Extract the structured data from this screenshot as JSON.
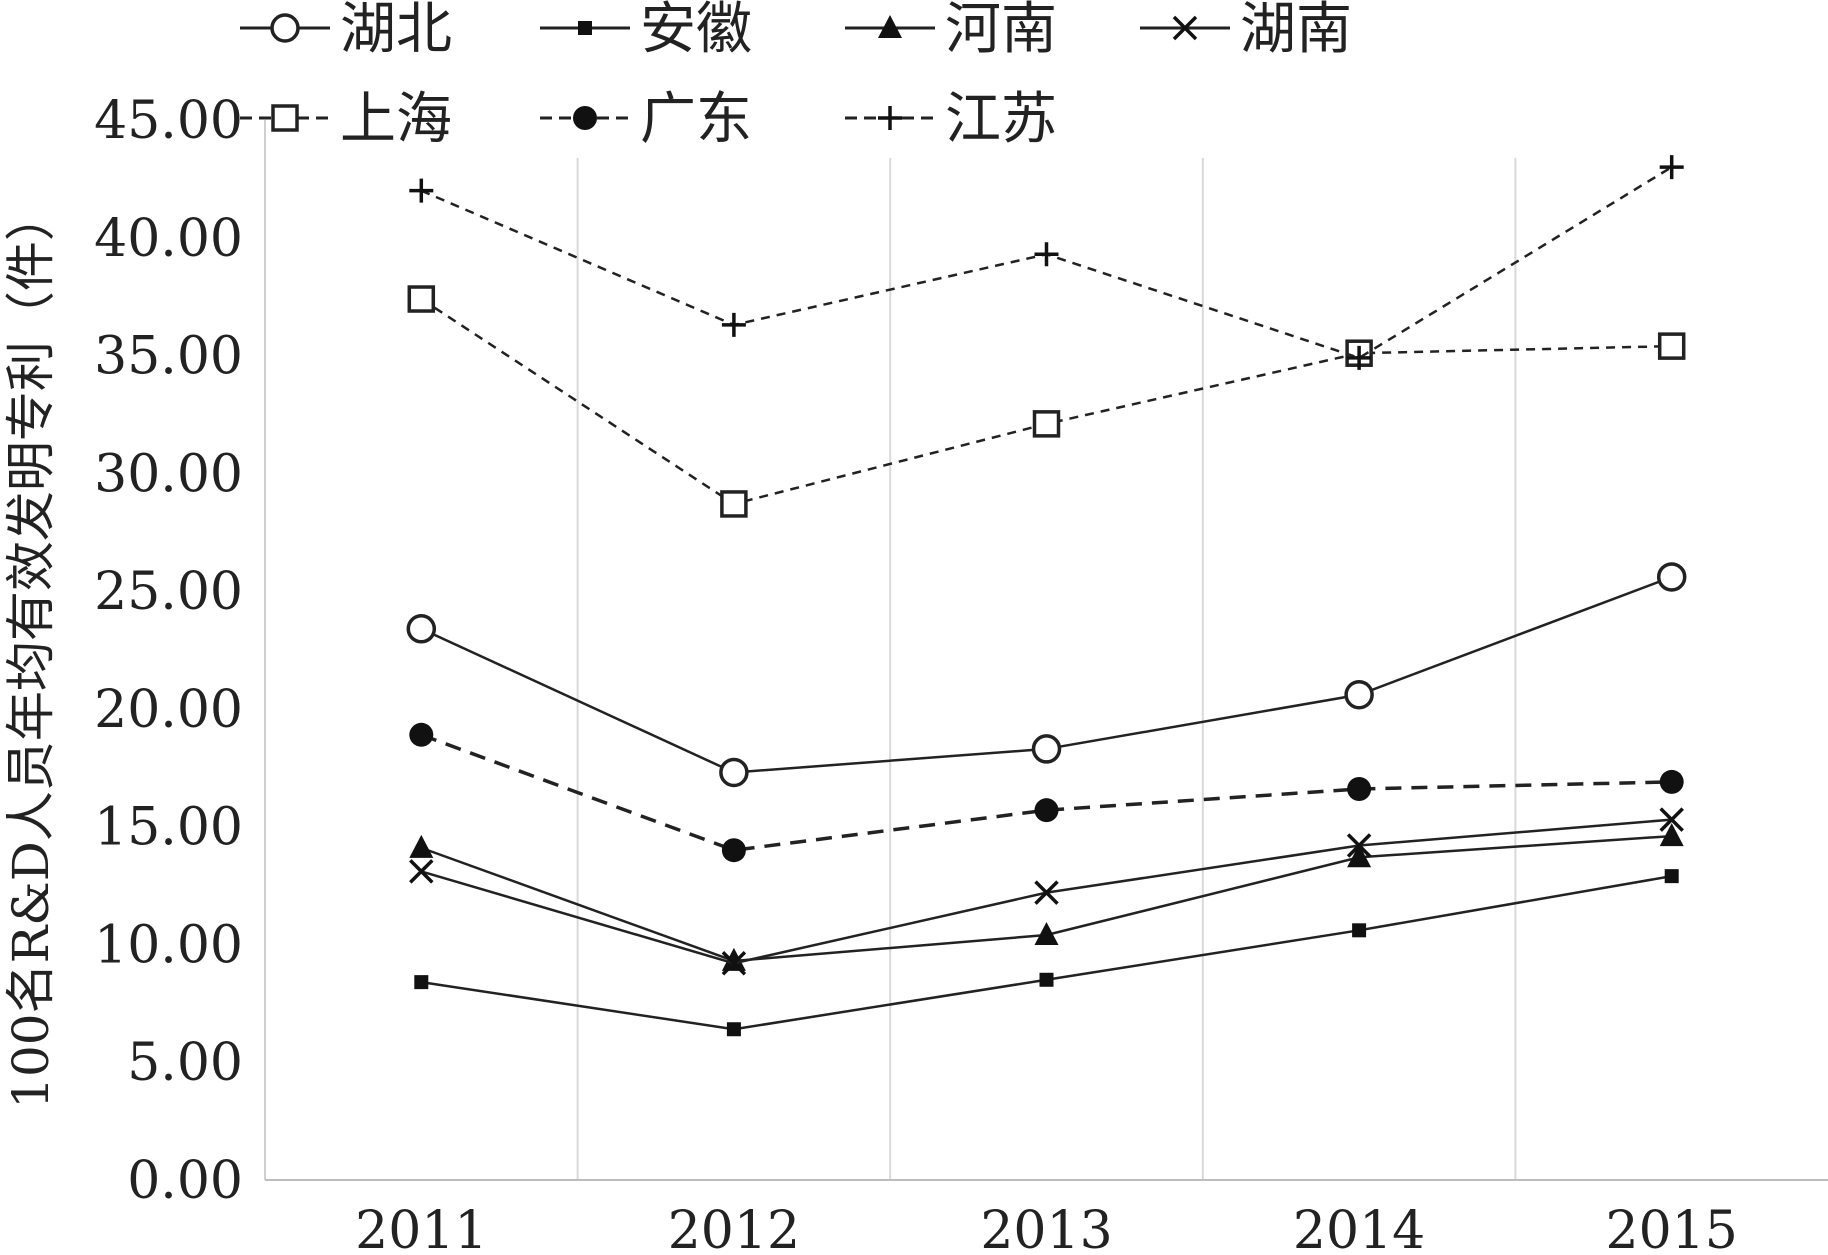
{
  "chart_data": {
    "type": "line",
    "title": "",
    "xlabel": "",
    "ylabel": "100名R&D人员年均有效发明专利（件）",
    "x": [
      "2011",
      "2012",
      "2013",
      "2014",
      "2015"
    ],
    "ylim": [
      0,
      45
    ],
    "yticks": [
      "0.00",
      "5.00",
      "10.00",
      "15.00",
      "20.00",
      "25.00",
      "30.00",
      "35.00",
      "40.00",
      "45.00"
    ],
    "grid": "vertical",
    "legend_position": "top",
    "series": [
      {
        "name": "湖北",
        "marker": "open-circle",
        "line": "solid",
        "values": [
          23.4,
          17.3,
          18.3,
          20.6,
          25.6
        ]
      },
      {
        "name": "安徽",
        "marker": "filled-square",
        "line": "solid",
        "values": [
          8.4,
          6.4,
          8.5,
          10.6,
          12.9
        ]
      },
      {
        "name": "河南",
        "marker": "filled-triangle",
        "line": "solid",
        "values": [
          14.1,
          9.3,
          10.4,
          13.7,
          14.6
        ]
      },
      {
        "name": "湖南",
        "marker": "x",
        "line": "solid",
        "values": [
          13.1,
          9.2,
          12.2,
          14.2,
          15.3
        ]
      },
      {
        "name": "上海",
        "marker": "open-square",
        "line": "dashed",
        "values": [
          37.4,
          28.7,
          32.1,
          35.1,
          35.4
        ]
      },
      {
        "name": "广东",
        "marker": "filled-circle",
        "line": "dashed",
        "values": [
          18.9,
          14.0,
          15.7,
          16.6,
          16.9
        ]
      },
      {
        "name": "江苏",
        "marker": "plus",
        "line": "dashed",
        "values": [
          42.0,
          36.3,
          39.3,
          34.9,
          43.0
        ]
      }
    ]
  }
}
